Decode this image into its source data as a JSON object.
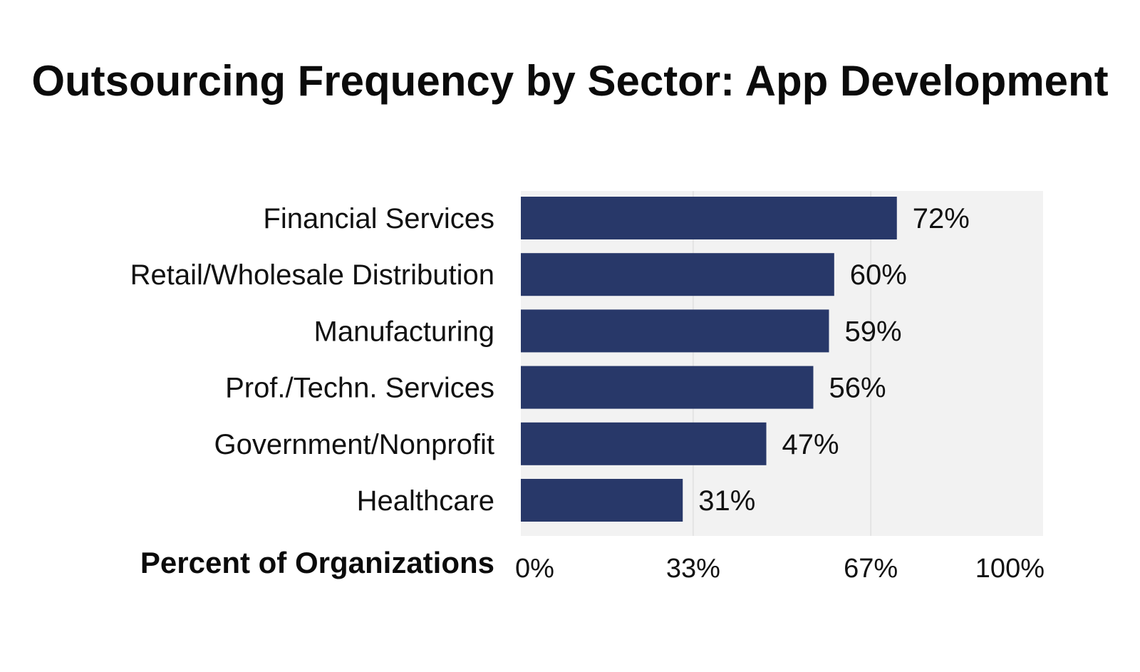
{
  "chart_data": {
    "type": "bar",
    "orientation": "horizontal",
    "title": "Outsourcing Frequency by Sector: App Development",
    "xlabel": "Percent of Organizations",
    "ylabel": "",
    "categories": [
      "Financial Services",
      "Retail/Wholesale Distribution",
      "Manufacturing",
      "Prof./Techn. Services",
      "Government/Nonprofit",
      "Healthcare"
    ],
    "values": [
      72,
      60,
      59,
      56,
      47,
      31
    ],
    "value_labels": [
      "72%",
      "60%",
      "59%",
      "56%",
      "47%",
      "31%"
    ],
    "xlim": [
      0,
      100
    ],
    "xticks": [
      0,
      33,
      67,
      100
    ],
    "xtick_labels": [
      "0%",
      "33%",
      "67%",
      "100%"
    ],
    "grid": true,
    "legend": "none",
    "colors": {
      "bar": "#283869",
      "plot_background": "#f2f2f2",
      "gridline": "#e4e4e4"
    }
  }
}
